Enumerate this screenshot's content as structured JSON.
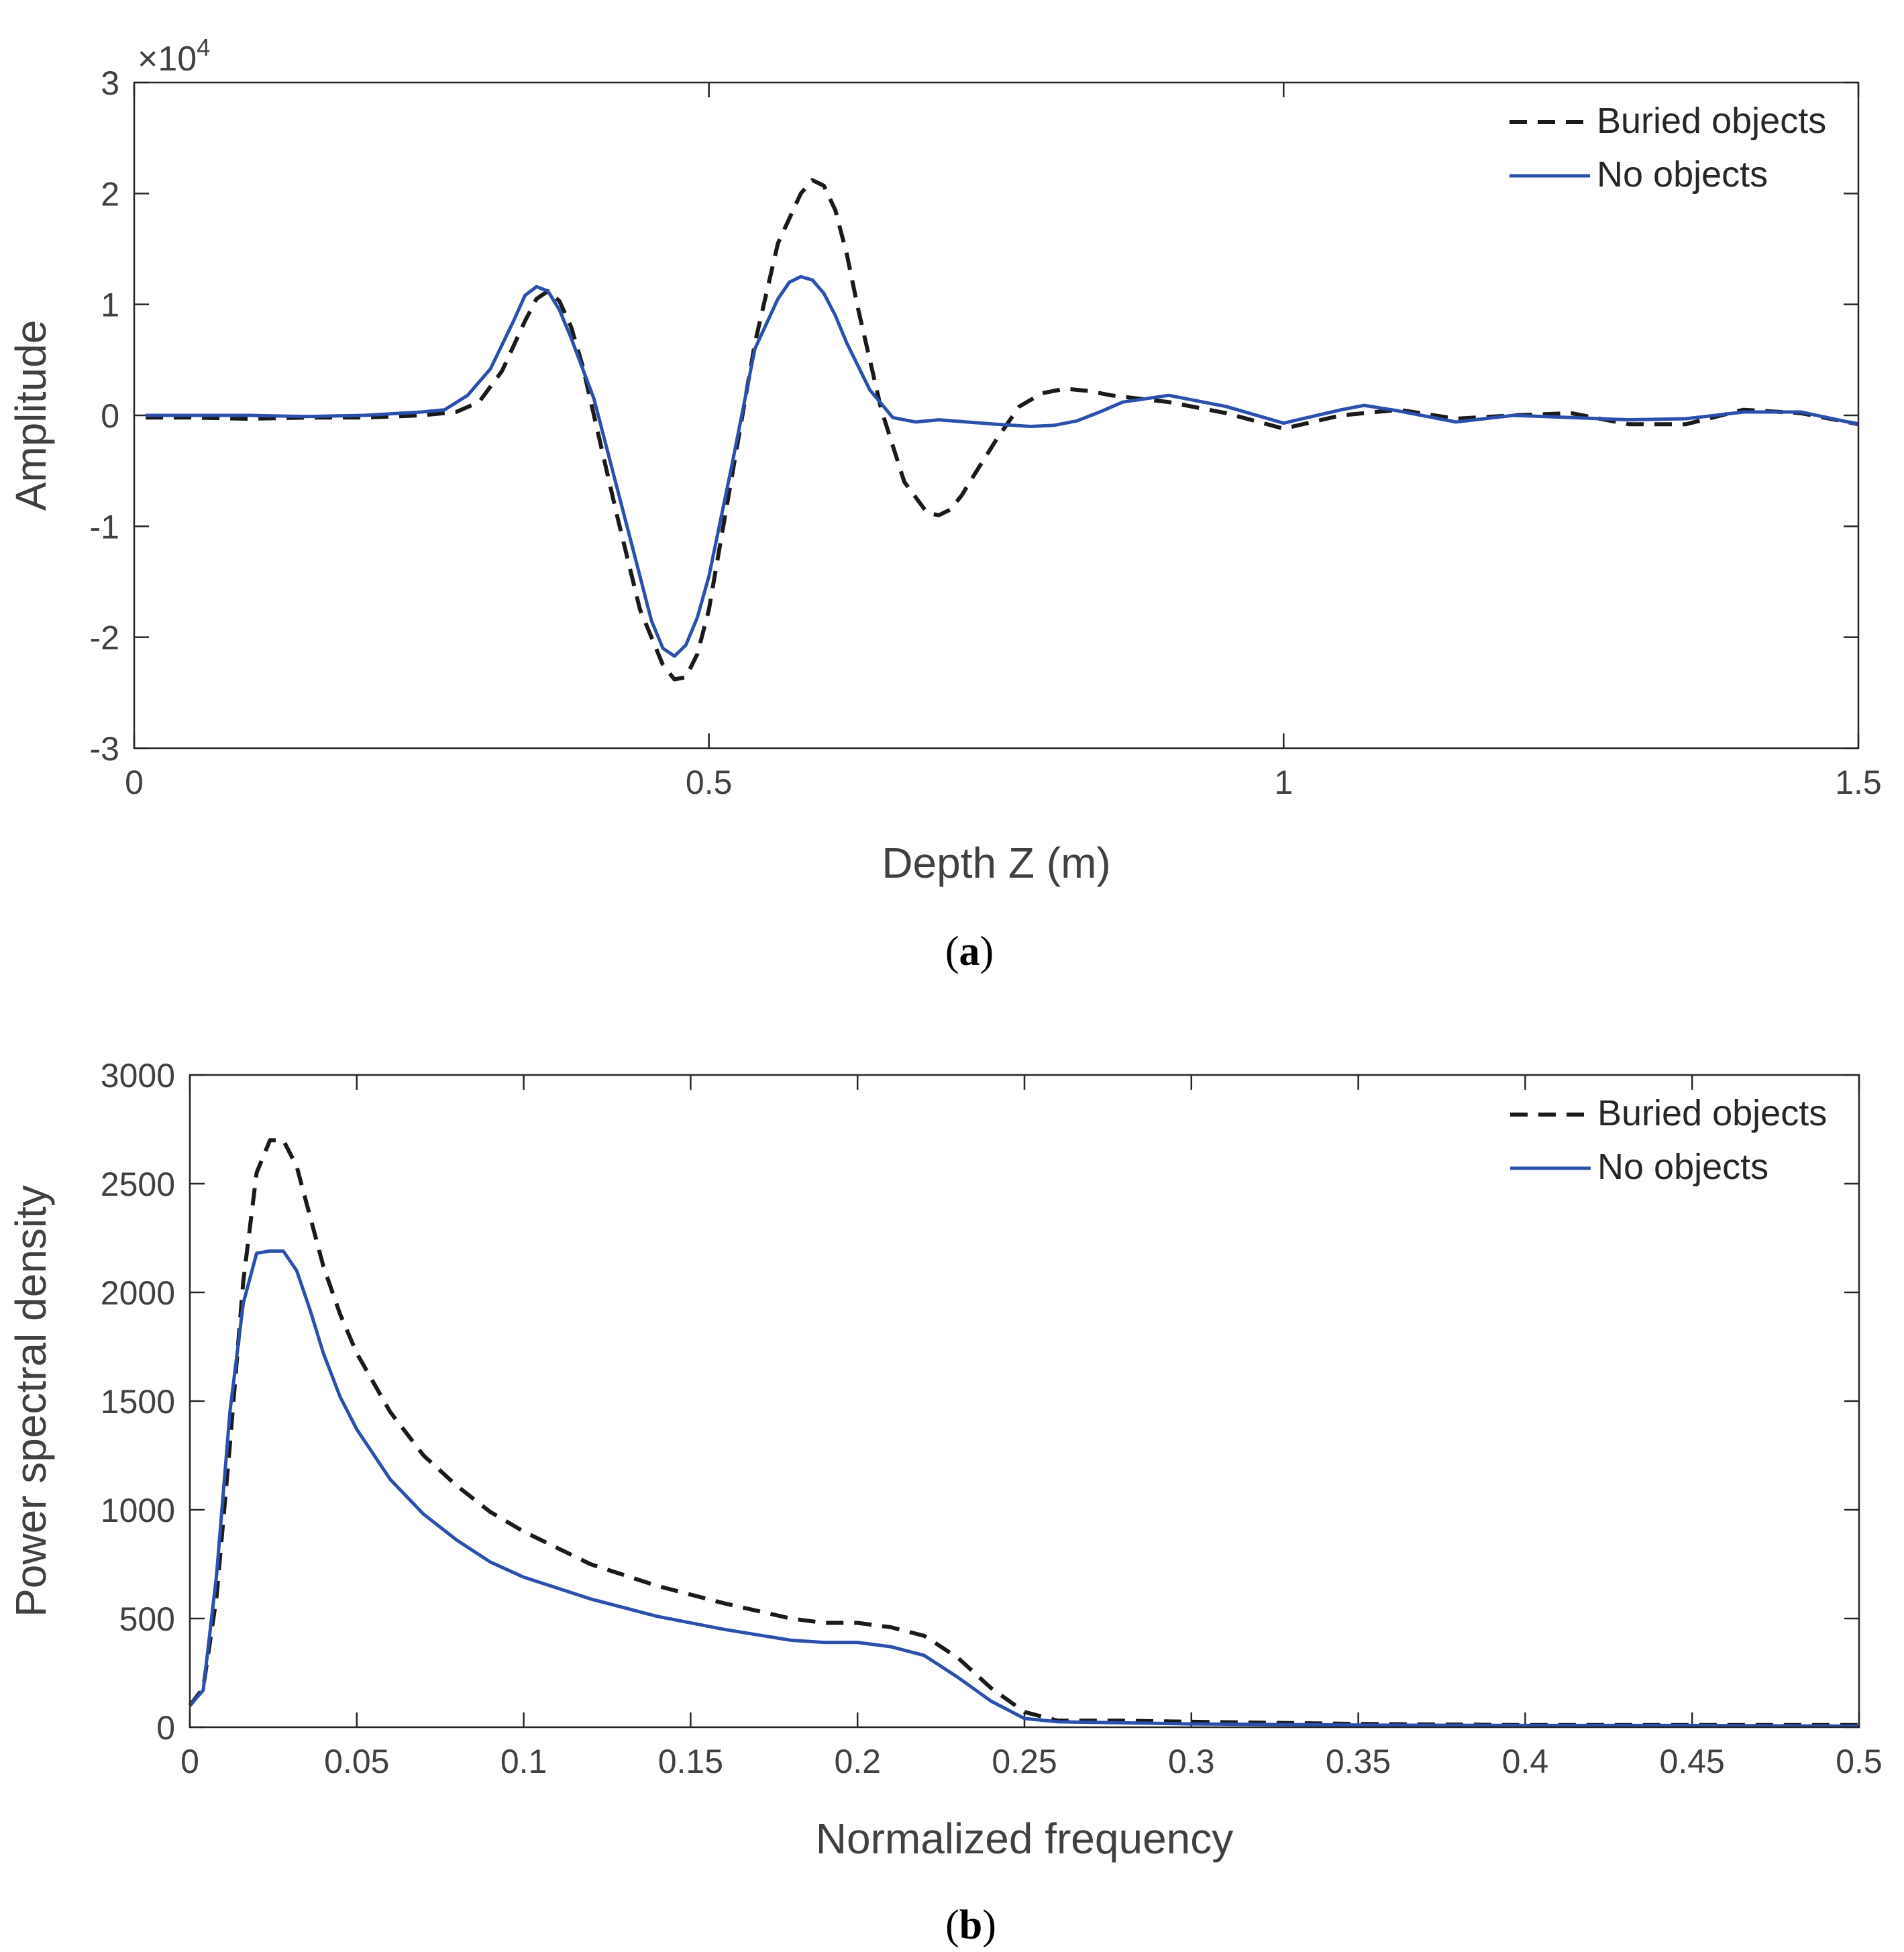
{
  "figure": {
    "panels": [
      {
        "id": "a",
        "label_open": "(",
        "label_letter": "a",
        "label_close": ")"
      },
      {
        "id": "b",
        "label_open": "(",
        "label_letter": "b",
        "label_close": ")"
      }
    ]
  },
  "chart_data": [
    {
      "type": "line",
      "panel": "a",
      "title": "",
      "xlabel": "Depth Z (m)",
      "ylabel": "Amplitude",
      "xlim": [
        0,
        1.5
      ],
      "ylim": [
        -3,
        3
      ],
      "y_exponent_label": "×10",
      "y_exponent_power": "4",
      "xticks": [
        0,
        0.5,
        1,
        1.5
      ],
      "xtick_labels": [
        "0",
        "0.5",
        "1",
        "1.5"
      ],
      "yticks": [
        -3,
        -2,
        -1,
        0,
        1,
        2,
        3
      ],
      "ytick_labels": [
        "-3",
        "-2",
        "-1",
        "0",
        "1",
        "2",
        "3"
      ],
      "legend_position": "top-right",
      "grid": false,
      "series": [
        {
          "name": "Buried objects",
          "style": "dashed",
          "color": "#1a1a1a",
          "x": [
            0.01,
            0.05,
            0.1,
            0.15,
            0.2,
            0.25,
            0.28,
            0.3,
            0.32,
            0.34,
            0.35,
            0.36,
            0.37,
            0.38,
            0.39,
            0.4,
            0.42,
            0.44,
            0.46,
            0.47,
            0.48,
            0.49,
            0.5,
            0.52,
            0.54,
            0.56,
            0.58,
            0.59,
            0.6,
            0.61,
            0.62,
            0.63,
            0.65,
            0.67,
            0.69,
            0.7,
            0.71,
            0.72,
            0.73,
            0.75,
            0.77,
            0.79,
            0.81,
            0.83,
            0.85,
            0.9,
            0.95,
            1.0,
            1.05,
            1.1,
            1.15,
            1.2,
            1.25,
            1.3,
            1.35,
            1.4,
            1.45,
            1.5
          ],
          "y": [
            -0.02,
            -0.02,
            -0.03,
            -0.02,
            -0.02,
            0.0,
            0.03,
            0.12,
            0.4,
            0.85,
            1.05,
            1.12,
            1.03,
            0.8,
            0.45,
            0.0,
            -0.9,
            -1.75,
            -2.25,
            -2.38,
            -2.36,
            -2.15,
            -1.75,
            -0.55,
            0.65,
            1.55,
            2.0,
            2.12,
            2.07,
            1.85,
            1.45,
            0.95,
            0.05,
            -0.6,
            -0.88,
            -0.9,
            -0.85,
            -0.72,
            -0.55,
            -0.22,
            0.08,
            0.2,
            0.24,
            0.22,
            0.18,
            0.12,
            0.02,
            -0.12,
            0.0,
            0.05,
            -0.03,
            0.0,
            0.02,
            -0.08,
            -0.08,
            0.05,
            0.02,
            -0.08
          ]
        },
        {
          "name": "No objects",
          "style": "solid",
          "color": "#2b4fad",
          "x": [
            0.01,
            0.05,
            0.1,
            0.15,
            0.2,
            0.25,
            0.27,
            0.29,
            0.31,
            0.33,
            0.34,
            0.35,
            0.36,
            0.37,
            0.38,
            0.4,
            0.42,
            0.44,
            0.45,
            0.46,
            0.47,
            0.48,
            0.49,
            0.5,
            0.52,
            0.54,
            0.56,
            0.57,
            0.58,
            0.59,
            0.6,
            0.61,
            0.62,
            0.64,
            0.66,
            0.68,
            0.7,
            0.75,
            0.78,
            0.8,
            0.82,
            0.84,
            0.86,
            0.9,
            0.95,
            1.0,
            1.05,
            1.07,
            1.1,
            1.15,
            1.2,
            1.25,
            1.3,
            1.35,
            1.4,
            1.45,
            1.5
          ],
          "y": [
            0.0,
            0.0,
            0.0,
            -0.01,
            0.0,
            0.03,
            0.05,
            0.18,
            0.42,
            0.85,
            1.08,
            1.16,
            1.12,
            0.95,
            0.7,
            0.15,
            -0.65,
            -1.45,
            -1.85,
            -2.1,
            -2.17,
            -2.07,
            -1.82,
            -1.45,
            -0.45,
            0.6,
            1.05,
            1.2,
            1.25,
            1.22,
            1.1,
            0.9,
            0.65,
            0.23,
            -0.02,
            -0.06,
            -0.04,
            -0.08,
            -0.1,
            -0.09,
            -0.05,
            0.03,
            0.12,
            0.18,
            0.08,
            -0.07,
            0.05,
            0.09,
            0.04,
            -0.06,
            0.0,
            -0.02,
            -0.04,
            -0.03,
            0.03,
            0.03,
            -0.08
          ]
        }
      ]
    },
    {
      "type": "line",
      "panel": "b",
      "title": "",
      "xlabel": "Normalized frequency",
      "ylabel": "Power spectral density",
      "xlim": [
        0,
        0.5
      ],
      "ylim": [
        0,
        3000
      ],
      "xticks": [
        0,
        0.05,
        0.1,
        0.15,
        0.2,
        0.25,
        0.3,
        0.35,
        0.4,
        0.45,
        0.5
      ],
      "xtick_labels": [
        "0",
        "0.05",
        "0.1",
        "0.15",
        "0.2",
        "0.25",
        "0.3",
        "0.35",
        "0.4",
        "0.45",
        "0.5"
      ],
      "yticks": [
        0,
        500,
        1000,
        1500,
        2000,
        2500,
        3000
      ],
      "ytick_labels": [
        "0",
        "500",
        "1000",
        "1500",
        "2000",
        "2500",
        "3000"
      ],
      "legend_position": "top-right",
      "grid": false,
      "series": [
        {
          "name": "Buried objects",
          "style": "dashed",
          "color": "#1a1a1a",
          "x": [
            0.0,
            0.004,
            0.008,
            0.012,
            0.016,
            0.02,
            0.024,
            0.028,
            0.032,
            0.036,
            0.04,
            0.045,
            0.05,
            0.06,
            0.07,
            0.08,
            0.09,
            0.1,
            0.12,
            0.14,
            0.16,
            0.18,
            0.19,
            0.2,
            0.21,
            0.22,
            0.23,
            0.24,
            0.25,
            0.26,
            0.28,
            0.3,
            0.35,
            0.4,
            0.45,
            0.5
          ],
          "y": [
            100,
            180,
            600,
            1300,
            2050,
            2550,
            2700,
            2700,
            2580,
            2350,
            2120,
            1900,
            1720,
            1450,
            1250,
            1110,
            990,
            900,
            750,
            650,
            570,
            500,
            480,
            480,
            460,
            420,
            320,
            180,
            70,
            30,
            30,
            25,
            15,
            10,
            10,
            10
          ]
        },
        {
          "name": "No objects",
          "style": "solid",
          "color": "#2b4fad",
          "x": [
            0.0,
            0.004,
            0.008,
            0.012,
            0.016,
            0.02,
            0.024,
            0.028,
            0.032,
            0.036,
            0.04,
            0.045,
            0.05,
            0.06,
            0.07,
            0.08,
            0.09,
            0.1,
            0.12,
            0.14,
            0.16,
            0.18,
            0.19,
            0.2,
            0.21,
            0.22,
            0.23,
            0.24,
            0.25,
            0.26,
            0.28,
            0.3,
            0.35,
            0.4,
            0.45,
            0.5
          ],
          "y": [
            100,
            170,
            700,
            1450,
            1950,
            2180,
            2190,
            2190,
            2100,
            1920,
            1720,
            1520,
            1370,
            1140,
            980,
            860,
            760,
            690,
            590,
            510,
            450,
            400,
            390,
            390,
            370,
            330,
            230,
            120,
            40,
            25,
            20,
            15,
            10,
            8,
            8,
            5
          ]
        }
      ]
    }
  ]
}
